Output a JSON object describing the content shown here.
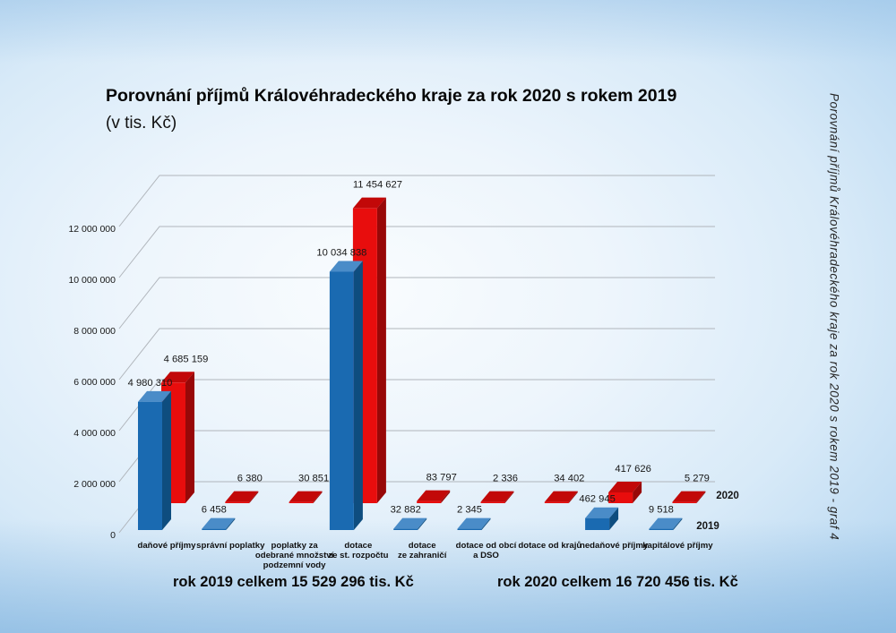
{
  "slide": {
    "title": "Porovnání příjmů Královéhradeckého kraje za rok 2020 s rokem 2019",
    "subtitle": "(v tis. Kč)",
    "total_2019": "rok 2019 celkem 15 529 296 tis. Kč",
    "total_2020": "rok 2020 celkem 16 720 456  tis. Kč",
    "side_caption": "Porovnání příjmů Královéhradeckého kraje za rok 2020 s rokem 2019 - graf 4"
  },
  "chart_data": {
    "type": "bar",
    "projection": "3d-perspective",
    "unit": "tis. Kč",
    "title": "Porovnání příjmů Královéhradeckého kraje za rok 2020 s rokem 2019 (v tis. Kč)",
    "categories": [
      [
        "daňové příjmy"
      ],
      [
        "správní poplatky"
      ],
      [
        "poplatky za",
        "odebrané množství",
        "podzemní vody"
      ],
      [
        "dotace",
        "ze st. rozpočtu"
      ],
      [
        "dotace",
        "ze zahraničí"
      ],
      [
        "dotace od obcí",
        "a DSO"
      ],
      [
        "dotace od krajů"
      ],
      [
        "nedaňové příjmy"
      ],
      [
        "kapitálové příjmy"
      ]
    ],
    "series": [
      {
        "name": "2019",
        "row": "front",
        "color_front": "#1a6ab1",
        "color_top": "#4a8cc8",
        "color_side": "#0e4d7f",
        "values": [
          4980310,
          6458,
          null,
          10034838,
          32882,
          2345,
          null,
          462945,
          9518
        ]
      },
      {
        "name": "2020",
        "row": "back",
        "color_front": "#e80d0d",
        "color_top": "#c20808",
        "color_side": "#980808",
        "values": [
          4685159,
          6380,
          30851,
          11454627,
          83797,
          2336,
          34402,
          417626,
          5279
        ]
      }
    ],
    "y_ticks": [
      0,
      2000000,
      4000000,
      6000000,
      8000000,
      10000000,
      12000000
    ],
    "ylim": [
      0,
      12000000
    ],
    "grid": true,
    "series_labels_position": "right-of-rows",
    "grid_color": "#b0b5bb",
    "text_color": "#161616"
  }
}
